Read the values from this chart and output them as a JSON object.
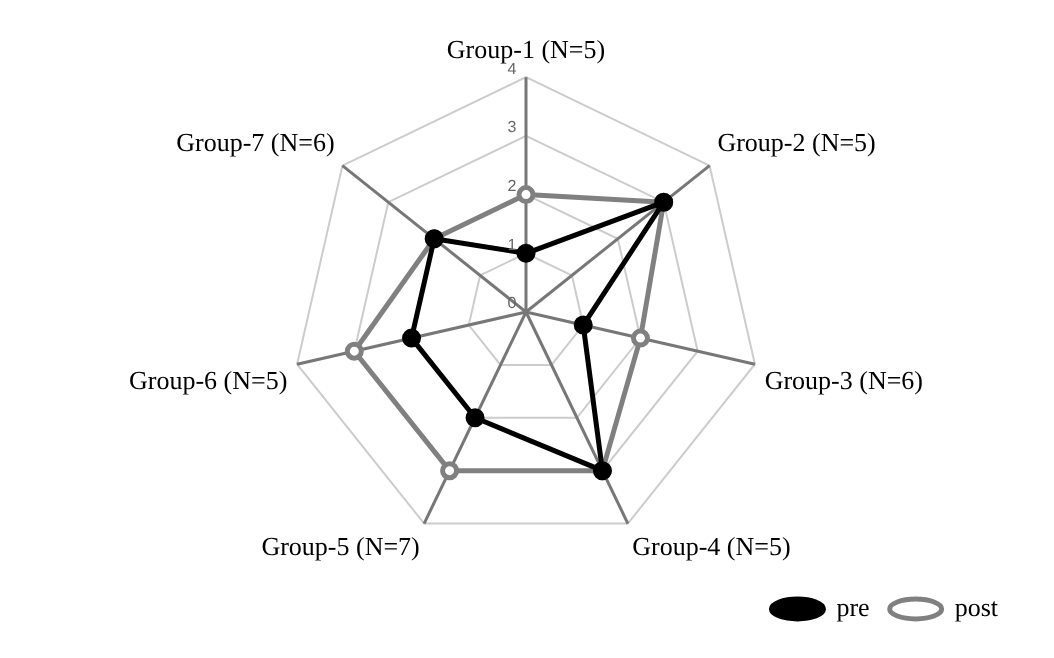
{
  "chart_data": {
    "type": "radar",
    "categories": [
      "Group-1 (N=5)",
      "Group-2 (N=5)",
      "Group-3 (N=6)",
      "Group-4 (N=5)",
      "Group-5 (N=7)",
      "Group-6 (N=5)",
      "Group-7 (N=6)"
    ],
    "series": [
      {
        "name": "pre",
        "color": "#000000",
        "values": [
          1,
          3,
          1,
          3,
          2,
          2,
          2
        ]
      },
      {
        "name": "post",
        "color": "#808080",
        "values": [
          2,
          3,
          2,
          3,
          3,
          3,
          2
        ]
      }
    ],
    "ylim": [
      0,
      4
    ],
    "yticks": [
      0,
      1,
      2,
      3,
      4
    ],
    "grid": true,
    "legend": "bottom right",
    "marker": "circle",
    "line_style": "solid"
  }
}
